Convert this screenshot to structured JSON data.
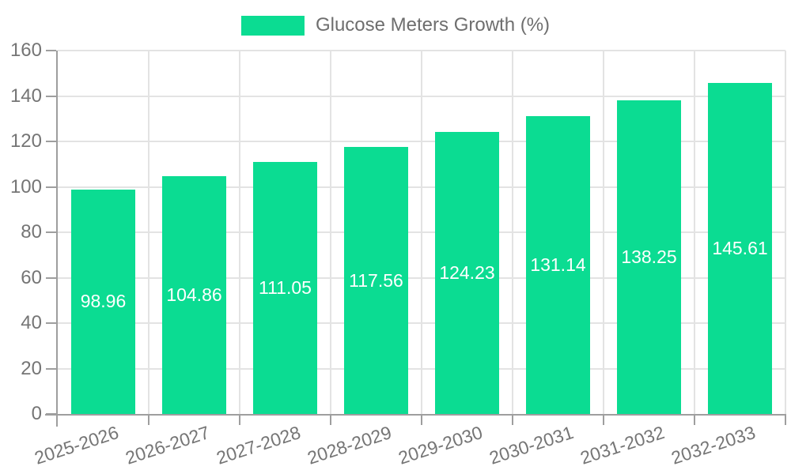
{
  "chart_data": {
    "type": "bar",
    "title": "Glucose Meters Growth (%)",
    "categories": [
      "2025-2026",
      "2026-2027",
      "2027-2028",
      "2028-2029",
      "2029-2030",
      "2030-2031",
      "2031-2032",
      "2032-2033"
    ],
    "values": [
      98.96,
      104.86,
      111.05,
      117.56,
      124.23,
      131.14,
      138.25,
      145.61
    ],
    "value_labels": [
      "98.96",
      "104.86",
      "111.05",
      "117.56",
      "124.23",
      "131.14",
      "138.25",
      "145.61"
    ],
    "xlabel": "",
    "ylabel": "",
    "ylim": [
      0,
      160
    ],
    "yticks": [
      0,
      20,
      40,
      60,
      80,
      100,
      120,
      140,
      160
    ],
    "grid": true,
    "legend_position": "top",
    "bar_label_position": "center",
    "x_label_rotation_deg": -18,
    "colors": {
      "bar": "#0BDC92",
      "axis": "#9E9E9E",
      "grid": "#E3E3E3",
      "axis_text": "#757575",
      "value_text": "#FFFFFF",
      "legend_text": "#6E6E6E",
      "background": "#FFFFFF"
    }
  }
}
